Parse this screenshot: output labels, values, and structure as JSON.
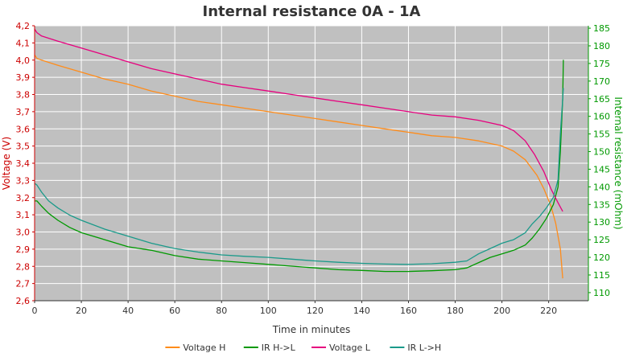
{
  "chart_data": {
    "type": "line",
    "title": "Internal resistance  0A - 1A",
    "xlabel": "Time in minutes",
    "ylabel_left": "Voltage (V)",
    "ylabel_right": "Internal resistance (mOhm)",
    "xlim": [
      0,
      237
    ],
    "ylim_left": [
      2.6,
      4.2
    ],
    "ylim_right": [
      107.7,
      185.7
    ],
    "x_ticks": [
      0,
      20,
      40,
      60,
      80,
      100,
      120,
      140,
      160,
      180,
      200,
      220
    ],
    "y_left_ticks": [
      "2,6",
      "2,7",
      "2,8",
      "2,9",
      "3,0",
      "3,1",
      "3,2",
      "3,3",
      "3,4",
      "3,5",
      "3,6",
      "3,7",
      "3,8",
      "3,9",
      "4,0",
      "4,1",
      "4,2"
    ],
    "y_right_ticks": [
      110,
      115,
      120,
      125,
      130,
      135,
      140,
      145,
      150,
      155,
      160,
      165,
      170,
      175,
      180,
      185
    ],
    "grid": true,
    "legend_position": "bottom",
    "colors": {
      "plot_bg": "#c0c0c0",
      "grid": "#ffffff",
      "left_axis": "#cc0000",
      "right_axis": "#009900",
      "bottom_axis": "#333333",
      "title": "#333333"
    },
    "series": [
      {
        "name": "Voltage H",
        "axis": "left",
        "color": "#ff8c1a",
        "points": [
          [
            0,
            4.03
          ],
          [
            1,
            4.01
          ],
          [
            3,
            4.0
          ],
          [
            10,
            3.97
          ],
          [
            20,
            3.93
          ],
          [
            30,
            3.89
          ],
          [
            40,
            3.86
          ],
          [
            50,
            3.82
          ],
          [
            60,
            3.79
          ],
          [
            70,
            3.76
          ],
          [
            80,
            3.74
          ],
          [
            90,
            3.72
          ],
          [
            100,
            3.7
          ],
          [
            110,
            3.68
          ],
          [
            120,
            3.66
          ],
          [
            130,
            3.64
          ],
          [
            140,
            3.62
          ],
          [
            150,
            3.6
          ],
          [
            160,
            3.58
          ],
          [
            170,
            3.56
          ],
          [
            180,
            3.55
          ],
          [
            190,
            3.53
          ],
          [
            200,
            3.5
          ],
          [
            205,
            3.47
          ],
          [
            210,
            3.42
          ],
          [
            215,
            3.33
          ],
          [
            218,
            3.25
          ],
          [
            221,
            3.15
          ],
          [
            223,
            3.05
          ],
          [
            225,
            2.9
          ],
          [
            226,
            2.73
          ]
        ]
      },
      {
        "name": "IR H->L",
        "axis": "right",
        "color": "#009900",
        "points": [
          [
            0,
            136
          ],
          [
            1,
            136
          ],
          [
            3,
            134.5
          ],
          [
            6,
            132.5
          ],
          [
            10,
            130.5
          ],
          [
            15,
            128.5
          ],
          [
            20,
            127
          ],
          [
            30,
            125
          ],
          [
            40,
            123
          ],
          [
            50,
            122
          ],
          [
            60,
            120.5
          ],
          [
            70,
            119.5
          ],
          [
            80,
            119
          ],
          [
            90,
            118.5
          ],
          [
            100,
            118
          ],
          [
            110,
            117.5
          ],
          [
            120,
            117
          ],
          [
            130,
            116.5
          ],
          [
            140,
            116.3
          ],
          [
            150,
            116
          ],
          [
            160,
            116
          ],
          [
            170,
            116.2
          ],
          [
            180,
            116.5
          ],
          [
            185,
            117
          ],
          [
            190,
            118.5
          ],
          [
            195,
            120
          ],
          [
            200,
            121
          ],
          [
            205,
            122
          ],
          [
            210,
            123.5
          ],
          [
            213,
            125.5
          ],
          [
            216,
            128
          ],
          [
            219,
            131
          ],
          [
            222,
            135
          ],
          [
            224,
            140
          ],
          [
            225,
            150
          ],
          [
            226,
            165
          ],
          [
            226.3,
            176
          ]
        ]
      },
      {
        "name": "Voltage L",
        "axis": "left",
        "color": "#e6007e",
        "points": [
          [
            0,
            4.18
          ],
          [
            1,
            4.16
          ],
          [
            3,
            4.14
          ],
          [
            10,
            4.11
          ],
          [
            20,
            4.07
          ],
          [
            30,
            4.03
          ],
          [
            40,
            3.99
          ],
          [
            50,
            3.95
          ],
          [
            60,
            3.92
          ],
          [
            70,
            3.89
          ],
          [
            80,
            3.86
          ],
          [
            90,
            3.84
          ],
          [
            100,
            3.82
          ],
          [
            110,
            3.8
          ],
          [
            120,
            3.78
          ],
          [
            130,
            3.76
          ],
          [
            140,
            3.74
          ],
          [
            150,
            3.72
          ],
          [
            160,
            3.7
          ],
          [
            170,
            3.68
          ],
          [
            180,
            3.67
          ],
          [
            190,
            3.65
          ],
          [
            200,
            3.62
          ],
          [
            205,
            3.59
          ],
          [
            210,
            3.53
          ],
          [
            214,
            3.45
          ],
          [
            218,
            3.35
          ],
          [
            221,
            3.25
          ],
          [
            224,
            3.17
          ],
          [
            226,
            3.12
          ]
        ]
      },
      {
        "name": "IR L->H",
        "axis": "right",
        "color": "#1a9a8a",
        "points": [
          [
            0,
            141
          ],
          [
            1,
            140.5
          ],
          [
            3,
            138.5
          ],
          [
            6,
            136
          ],
          [
            10,
            134
          ],
          [
            15,
            132
          ],
          [
            20,
            130.5
          ],
          [
            30,
            128
          ],
          [
            40,
            126
          ],
          [
            50,
            124
          ],
          [
            60,
            122.5
          ],
          [
            70,
            121.5
          ],
          [
            80,
            120.7
          ],
          [
            90,
            120.3
          ],
          [
            100,
            120
          ],
          [
            110,
            119.5
          ],
          [
            120,
            119
          ],
          [
            130,
            118.6
          ],
          [
            140,
            118.3
          ],
          [
            150,
            118.1
          ],
          [
            160,
            118
          ],
          [
            170,
            118.2
          ],
          [
            180,
            118.6
          ],
          [
            185,
            119
          ],
          [
            190,
            121
          ],
          [
            195,
            122.5
          ],
          [
            200,
            124
          ],
          [
            205,
            125
          ],
          [
            210,
            127
          ],
          [
            213,
            129.5
          ],
          [
            216,
            131.5
          ],
          [
            219,
            134
          ],
          [
            222,
            137
          ],
          [
            224,
            142
          ],
          [
            225,
            155
          ],
          [
            226,
            165
          ],
          [
            226.3,
            168
          ]
        ]
      }
    ]
  }
}
